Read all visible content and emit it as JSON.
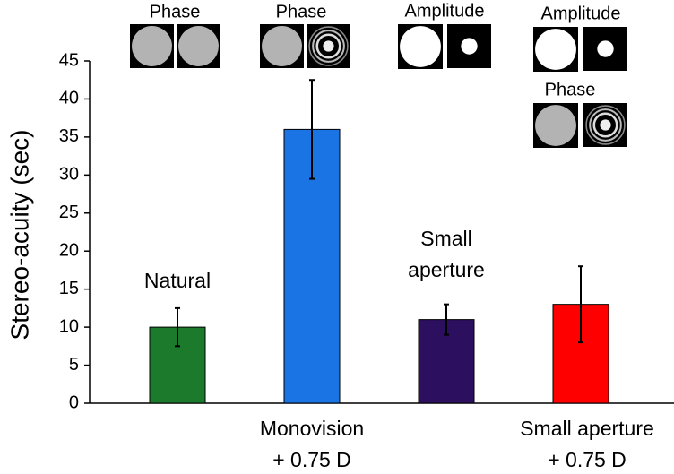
{
  "chart_data": {
    "type": "bar",
    "y_label": "Stereo-acuity (sec)",
    "categories": [
      [
        "Natural"
      ],
      [
        "Monovision",
        "+ 0.75 D"
      ],
      [
        "Small",
        "aperture"
      ],
      [
        "Small aperture",
        "+ 0.75 D"
      ]
    ],
    "values": [
      10,
      36,
      11,
      13
    ],
    "errors": [
      2.5,
      6.5,
      2,
      5
    ],
    "colors": [
      "#1b7a2c",
      "#1a74e4",
      "#2c0f5e",
      "#ff0000"
    ],
    "icon_labels": [
      [
        "Phase"
      ],
      [
        "Phase"
      ],
      [
        "Amplitude"
      ],
      [
        "Amplitude",
        "Phase"
      ]
    ],
    "ylim": [
      0,
      45
    ],
    "yticks": [
      0,
      5,
      10,
      15,
      20,
      25,
      30,
      35,
      40,
      45
    ]
  }
}
